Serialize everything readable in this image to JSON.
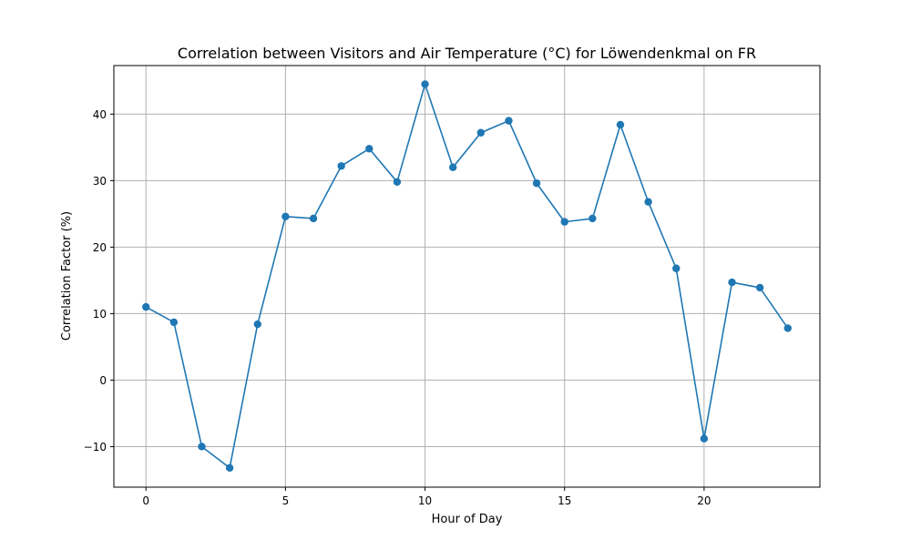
{
  "chart_data": {
    "type": "line",
    "title": "Correlation between Visitors and Air Temperature (°C) for Löwendenkmal on FR",
    "xlabel": "Hour of Day",
    "ylabel": "Correlation Factor (%)",
    "xlim": [
      -1.15,
      24.15
    ],
    "ylim": [
      -16.1,
      47.3
    ],
    "xticks": [
      0,
      5,
      10,
      15,
      20
    ],
    "xtick_labels": [
      "0",
      "5",
      "10",
      "15",
      "20"
    ],
    "yticks": [
      -10,
      0,
      10,
      20,
      30,
      40
    ],
    "ytick_labels": [
      "−10",
      "0",
      "10",
      "20",
      "30",
      "40"
    ],
    "grid": true,
    "marker": "circle",
    "color": "#1f77b4",
    "x": [
      0,
      1,
      2,
      3,
      4,
      5,
      6,
      7,
      8,
      9,
      10,
      11,
      12,
      13,
      14,
      15,
      16,
      17,
      18,
      19,
      20,
      21,
      22,
      23
    ],
    "values": [
      11.0,
      8.7,
      -10.0,
      -13.2,
      8.4,
      24.6,
      24.3,
      32.2,
      34.8,
      29.8,
      44.5,
      32.0,
      37.2,
      39.0,
      29.6,
      23.8,
      24.3,
      38.4,
      26.8,
      16.8,
      -8.8,
      14.7,
      13.9,
      7.8
    ]
  }
}
